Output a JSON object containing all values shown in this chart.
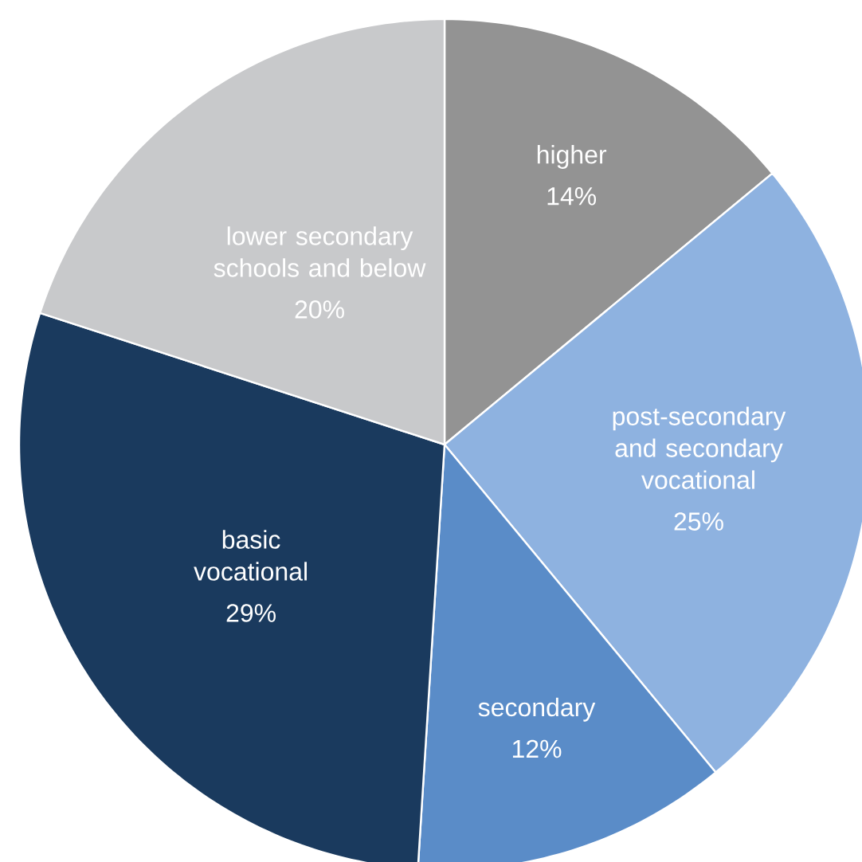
{
  "chart_data": {
    "type": "pie",
    "categories": [
      "higher",
      "post-secondary and secondary vocational",
      "secondary",
      "basic vocational",
      "lower secondary schools and below"
    ],
    "values": [
      14,
      25,
      12,
      29,
      20
    ],
    "value_labels": [
      "14%",
      "25%",
      "12%",
      "29%",
      "20%"
    ],
    "colors": [
      "#939393",
      "#8eb2e0",
      "#5a8cc8",
      "#1a3a5e",
      "#c8c9cb"
    ]
  }
}
